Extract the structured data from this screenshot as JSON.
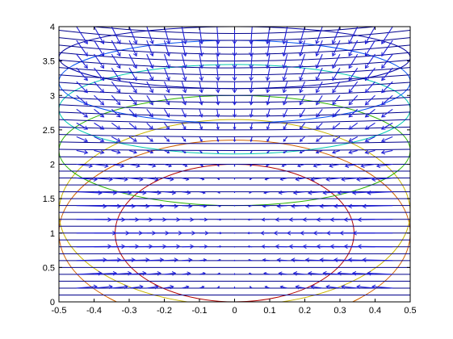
{
  "chart_data": {
    "type": "quiver",
    "title": "",
    "xlabel": "",
    "ylabel": "",
    "xlim": [
      -0.5,
      0.5
    ],
    "ylim": [
      0,
      4
    ],
    "x_ticks": [
      "-0.5",
      "-0.4",
      "-0.3",
      "-0.2",
      "-0.1",
      "0",
      "0.1",
      "0.2",
      "0.3",
      "0.4",
      "0.5"
    ],
    "y_ticks": [
      "0",
      "0.5",
      "1",
      "1.5",
      "2",
      "2.5",
      "3",
      "3.5",
      "4"
    ],
    "grid": false,
    "box": true,
    "quiver": {
      "x_values": [
        -0.45,
        -0.4,
        -0.35,
        -0.3,
        -0.25,
        -0.2,
        -0.15,
        -0.1,
        -0.05,
        0,
        0.05,
        0.1,
        0.15,
        0.2,
        0.25,
        0.3,
        0.35,
        0.4,
        0.45
      ],
      "y_step": 0.2,
      "y_range": [
        0,
        4
      ],
      "color": "#1f1fd8",
      "direction_note": "vectors point toward the line x = 0 near y = 1 and downward in the upper region"
    },
    "contours": [
      {
        "level": 1,
        "color": "#b00000",
        "center": [
          0,
          1
        ],
        "half_width": 0.34,
        "half_height": 1.0
      },
      {
        "level": 2,
        "color": "#d06000",
        "center": [
          0,
          1
        ],
        "half_width": 0.5,
        "half_height": 1.35
      },
      {
        "level": 3,
        "color": "#c8b400",
        "center": [
          0,
          1.3
        ],
        "half_width": 0.5,
        "half_height": 1.35
      },
      {
        "level": 4,
        "color": "#2ab000",
        "center": [
          0,
          2.2
        ],
        "half_width": 0.5,
        "half_height": 0.8
      },
      {
        "level": 5,
        "color": "#00c8b0",
        "center": [
          0,
          2.8
        ],
        "half_width": 0.5,
        "half_height": 0.65
      },
      {
        "level": 6,
        "color": "#0050f0",
        "center": [
          0,
          3.2
        ],
        "half_width": 0.5,
        "half_height": 0.6
      },
      {
        "level": 7,
        "color": "#0000a0",
        "center": [
          0,
          3.55
        ],
        "half_width": 0.5,
        "half_height": 0.45
      }
    ],
    "horizontal_lines": {
      "color": "#00008b",
      "y_values": [
        0.1,
        0.2,
        0.3,
        0.4,
        0.5,
        0.6,
        0.7,
        0.8,
        0.9,
        1.0,
        1.1,
        1.2,
        1.3,
        1.4,
        1.5,
        1.6,
        1.7,
        1.8,
        1.9,
        2.0,
        2.1,
        2.2,
        2.3,
        2.4,
        2.5,
        2.6,
        2.7,
        2.8,
        2.9,
        3.0,
        3.1,
        3.2,
        3.3,
        3.4,
        3.5,
        3.6,
        3.7,
        3.8,
        3.9
      ],
      "sag_note": "lines curve upward at the edges in the upper region"
    }
  }
}
